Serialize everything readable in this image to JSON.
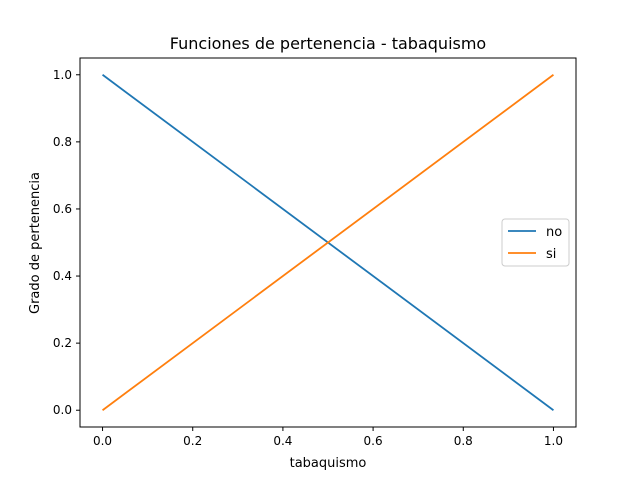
{
  "chart_data": {
    "type": "line",
    "title": "Funciones de pertenencia - tabaquismo",
    "xlabel": "tabaquismo",
    "ylabel": "Grado de pertenencia",
    "xlim": [
      -0.05,
      1.05
    ],
    "ylim": [
      -0.05,
      1.05
    ],
    "xticks": [
      0.0,
      0.2,
      0.4,
      0.6,
      0.8,
      1.0
    ],
    "xtick_labels": [
      "0.0",
      "0.2",
      "0.4",
      "0.6",
      "0.8",
      "1.0"
    ],
    "yticks": [
      0.0,
      0.2,
      0.4,
      0.6,
      0.8,
      1.0
    ],
    "ytick_labels": [
      "0.0",
      "0.2",
      "0.4",
      "0.6",
      "0.8",
      "1.0"
    ],
    "grid": false,
    "legend_position": "center-right",
    "series": [
      {
        "name": "no",
        "color": "#1f77b4",
        "x": [
          0.0,
          1.0
        ],
        "y": [
          1.0,
          0.0
        ]
      },
      {
        "name": "si",
        "color": "#ff7f0e",
        "x": [
          0.0,
          1.0
        ],
        "y": [
          0.0,
          1.0
        ]
      }
    ]
  }
}
